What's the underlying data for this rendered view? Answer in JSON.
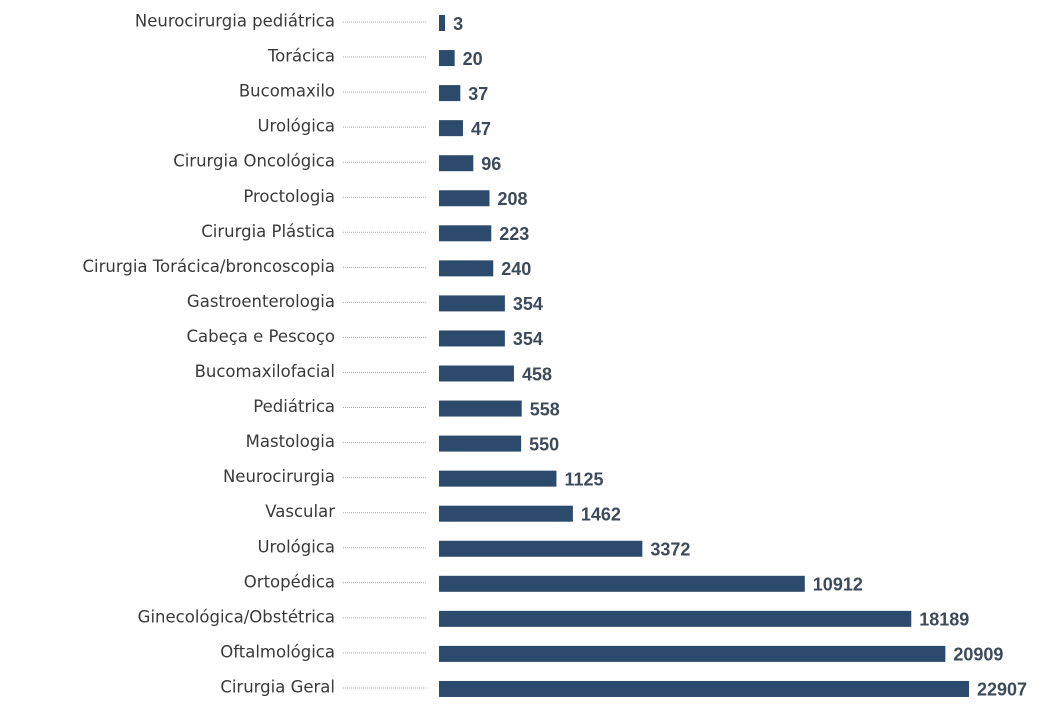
{
  "chart_data": {
    "type": "bar",
    "orientation": "horizontal",
    "xscale": "sqrt",
    "color": "#2c4a6b",
    "categories": [
      "Neurocirurgia pediátrica",
      "Torácica",
      "Bucomaxilo",
      "Urológica",
      "Cirurgia Oncológica",
      "Proctologia",
      "Cirurgia Plástica",
      "Cirurgia Torácica/broncoscopia",
      "Gastroenterologia",
      "Cabeça e Pescoço",
      "Bucomaxilofacial",
      "Pediátrica",
      "Mastologia",
      "Neurocirurgia",
      "Vascular",
      "Urológica",
      "Ortopédica",
      "Ginecológica/Obstétrica",
      "Oftalmológica",
      "Cirurgia Geral"
    ],
    "values": [
      3,
      20,
      37,
      47,
      96,
      208,
      223,
      240,
      354,
      354,
      458,
      558,
      550,
      1125,
      1462,
      3372,
      10912,
      18189,
      20909,
      22907
    ]
  }
}
